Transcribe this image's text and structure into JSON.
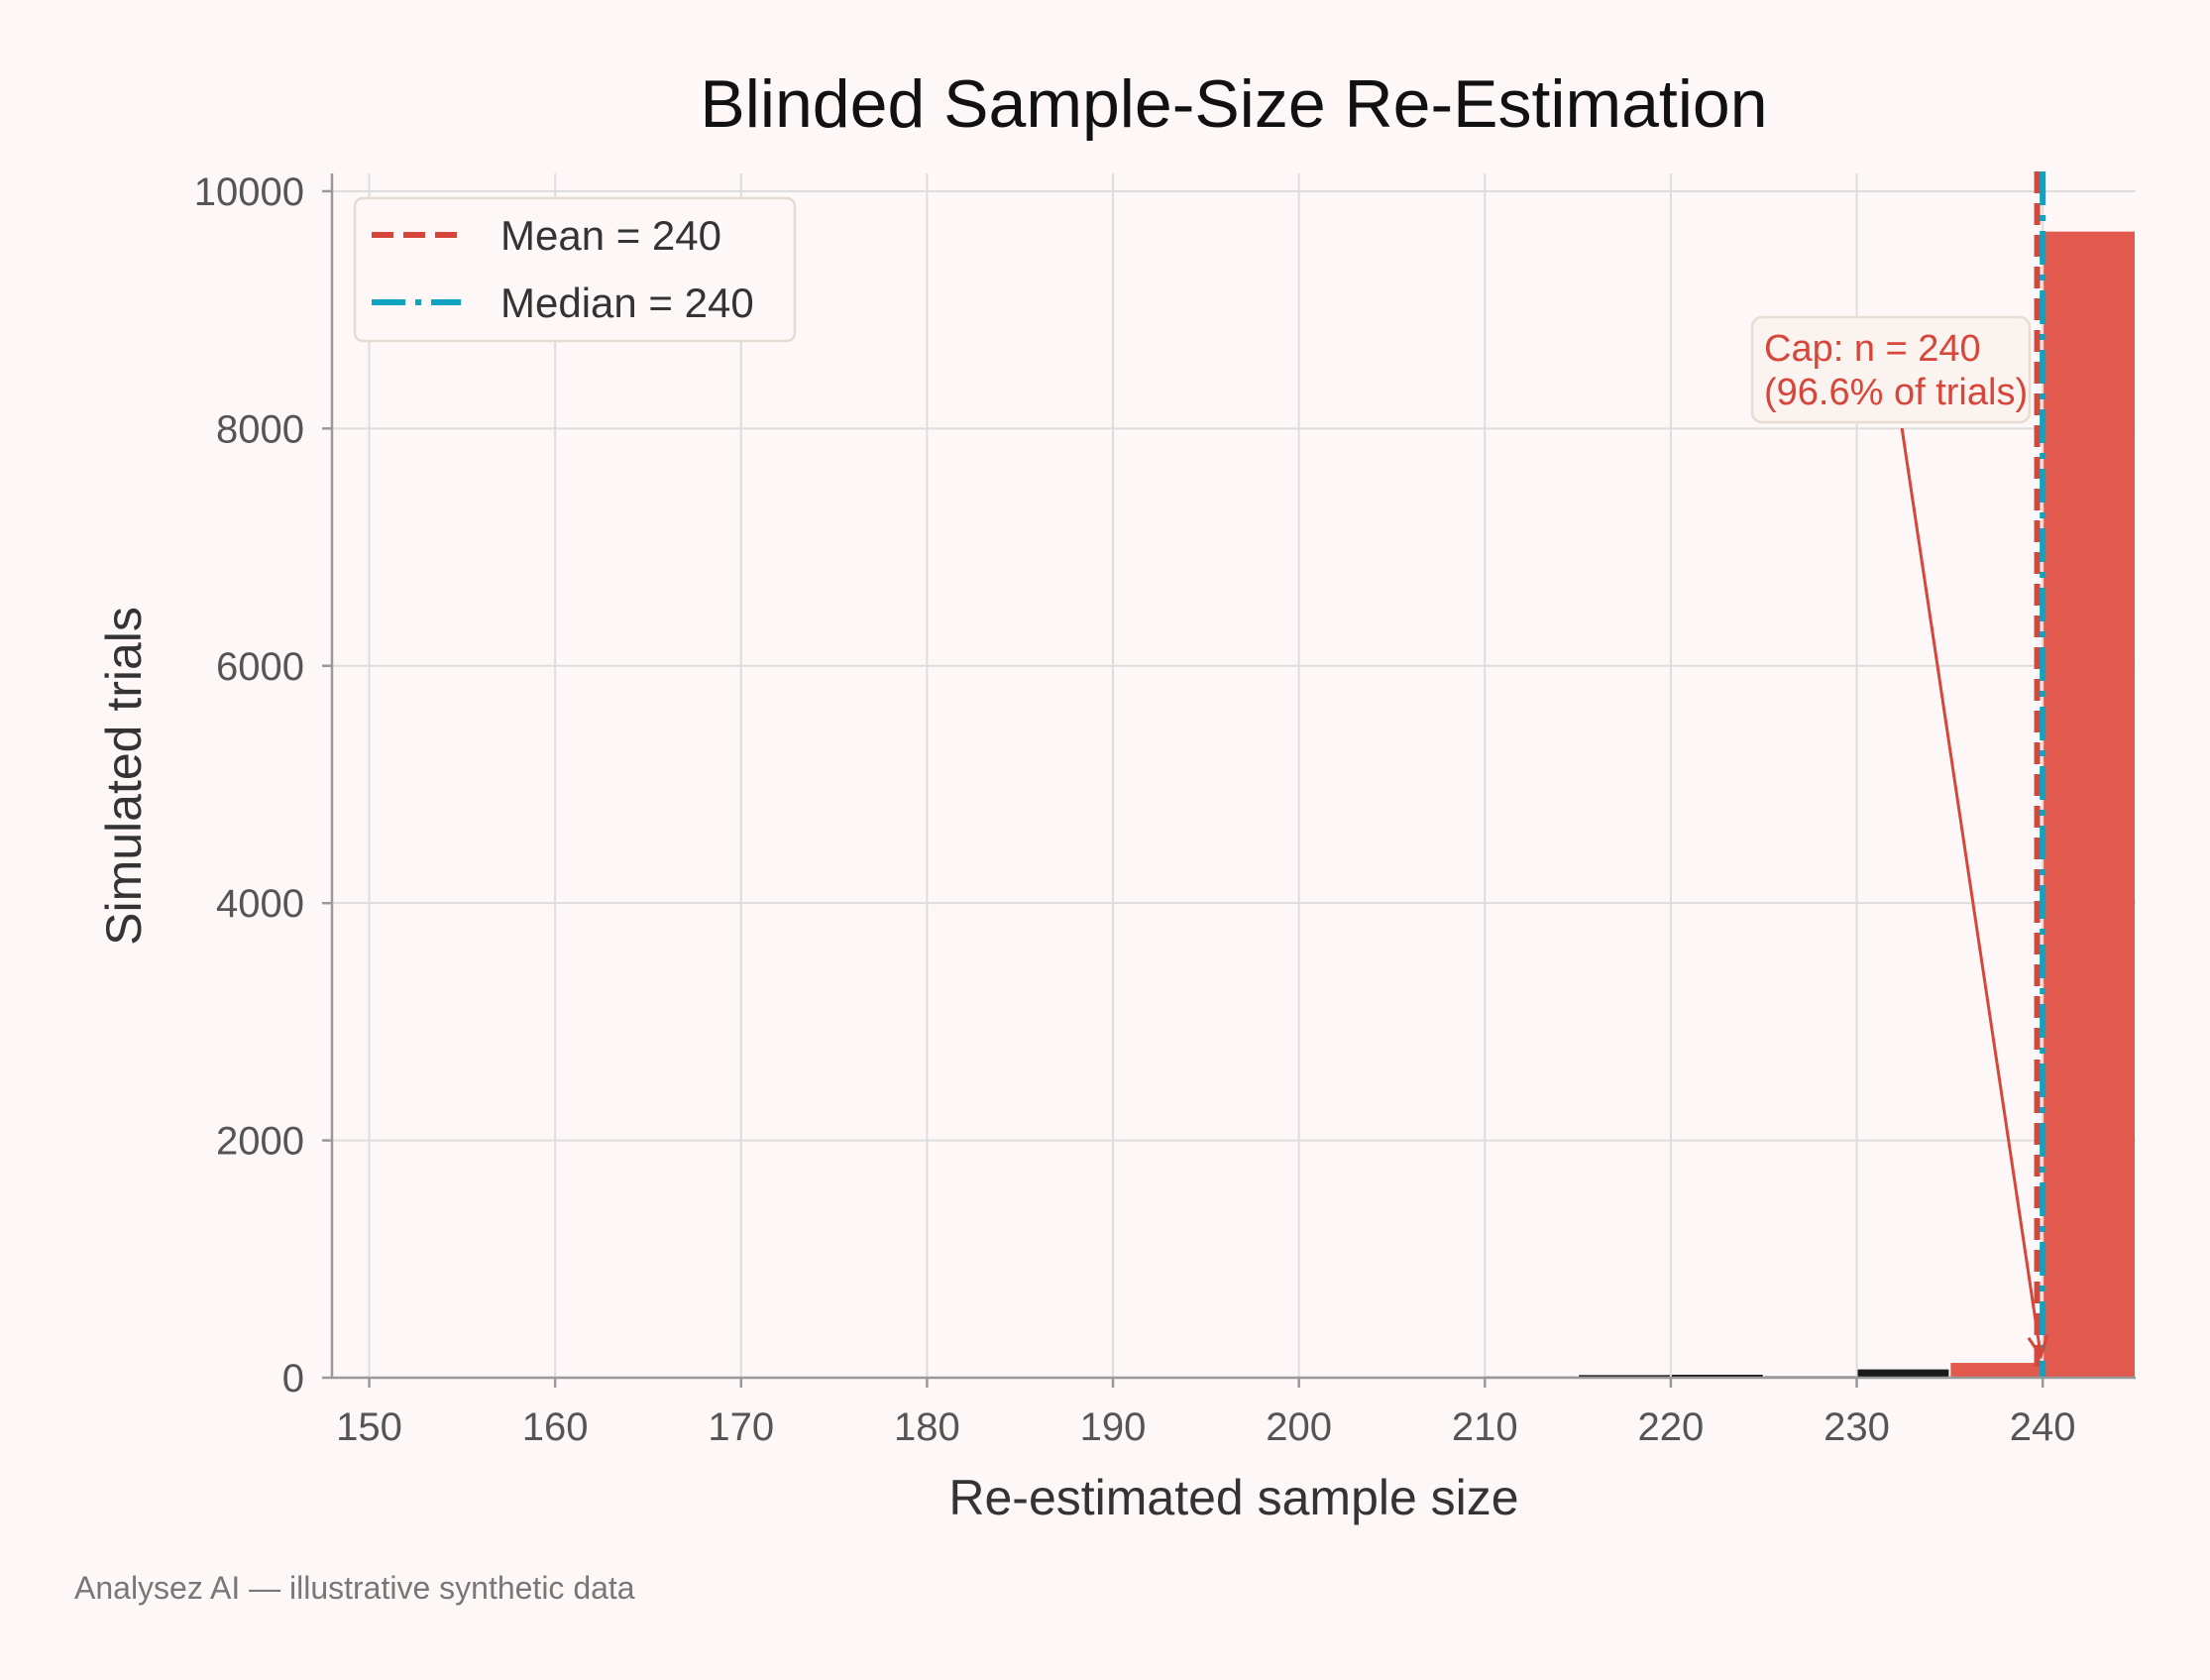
{
  "chart_data": {
    "type": "bar",
    "title": "Blinded Sample-Size Re-Estimation",
    "xlabel": "Re-estimated sample size",
    "ylabel": "Simulated trials",
    "xlim": [
      148,
      245
    ],
    "ylim": [
      0,
      10150
    ],
    "xticks": [
      150,
      160,
      170,
      180,
      190,
      200,
      210,
      220,
      230,
      240
    ],
    "yticks": [
      0,
      2000,
      4000,
      6000,
      8000,
      10000
    ],
    "grid": true,
    "legend_position": "top-left",
    "bins": [
      {
        "start": 195,
        "end": 200,
        "value": 3,
        "color": "#1a1a1a"
      },
      {
        "start": 200,
        "end": 205,
        "value": 3,
        "color": "#1a1a1a"
      },
      {
        "start": 205,
        "end": 210,
        "value": 5,
        "color": "#1a1a1a"
      },
      {
        "start": 210,
        "end": 215,
        "value": 10,
        "color": "#1a1a1a"
      },
      {
        "start": 215,
        "end": 220,
        "value": 22,
        "color": "#1a1a1a"
      },
      {
        "start": 220,
        "end": 225,
        "value": 25,
        "color": "#1a1a1a"
      },
      {
        "start": 225,
        "end": 230,
        "value": 12,
        "color": "#1a1a1a"
      },
      {
        "start": 230,
        "end": 235,
        "value": 70,
        "color": "#1a1a1a"
      },
      {
        "start": 235,
        "end": 240,
        "value": 125,
        "color": "#e25a4d"
      },
      {
        "start": 240,
        "end": 245,
        "value": 9660,
        "color": "#e25a4d"
      }
    ],
    "reference_lines": [
      {
        "name": "Mean = 240",
        "x": 239.7,
        "color": "#d6463a",
        "style": "dashed"
      },
      {
        "name": "Median = 240",
        "x": 240,
        "color": "#0fa3bf",
        "style": "dashdot"
      }
    ],
    "annotation": {
      "line1": "Cap: n = 240",
      "line2": "(96.6% of trials)",
      "text_x": 225.5,
      "text_y": 8700,
      "arrow_to_x": 239.9,
      "arrow_to_y": 250,
      "color": "#d6463a"
    }
  },
  "footer": "Analysez AI — illustrative synthetic data"
}
